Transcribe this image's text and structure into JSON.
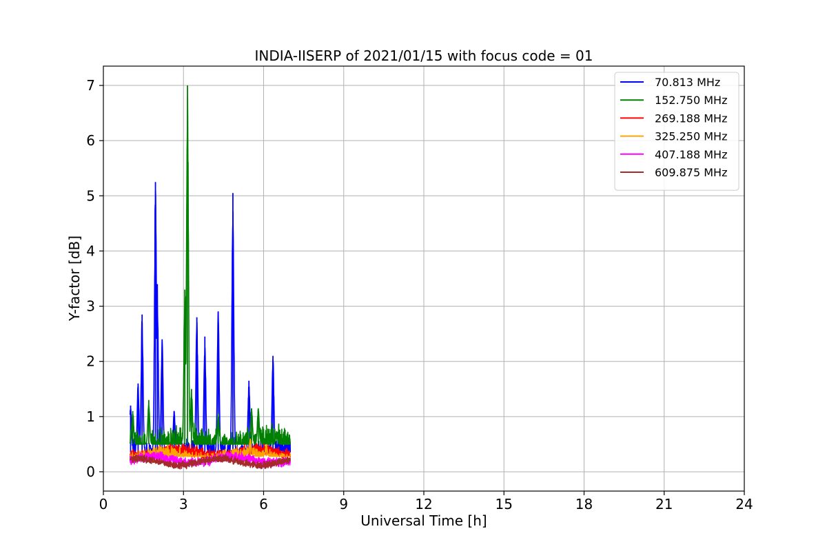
{
  "chart_data": {
    "type": "line",
    "title": "INDIA-IISERP of 2021/01/15 with focus code = 01",
    "xlabel": "Universal Time [h]",
    "ylabel": "Y-factor [dB]",
    "xlim": [
      0,
      24
    ],
    "ylim": [
      -0.35,
      7.35
    ],
    "xticks": [
      0,
      3,
      6,
      9,
      12,
      15,
      18,
      21,
      24
    ],
    "yticks": [
      0,
      1,
      2,
      3,
      4,
      5,
      6,
      7
    ],
    "grid": true,
    "legend_position": "top-right",
    "series": [
      {
        "name": "  70.813 MHz",
        "color": "#0000ff",
        "baseline": 0.35,
        "noise": 0.25,
        "x_range": [
          1.0,
          7.0
        ],
        "peaks": [
          {
            "x": 1.02,
            "y": 1.2
          },
          {
            "x": 1.3,
            "y": 1.6
          },
          {
            "x": 1.45,
            "y": 2.85
          },
          {
            "x": 1.95,
            "y": 5.25
          },
          {
            "x": 2.02,
            "y": 3.4
          },
          {
            "x": 2.2,
            "y": 2.4
          },
          {
            "x": 2.65,
            "y": 1.1
          },
          {
            "x": 3.5,
            "y": 2.8
          },
          {
            "x": 3.8,
            "y": 2.45
          },
          {
            "x": 4.3,
            "y": 2.9
          },
          {
            "x": 4.85,
            "y": 5.05
          },
          {
            "x": 5.45,
            "y": 1.65
          },
          {
            "x": 6.35,
            "y": 2.1
          }
        ]
      },
      {
        "name": "152.750 MHz",
        "color": "#008000",
        "baseline": 0.5,
        "noise": 0.35,
        "x_range": [
          1.0,
          7.0
        ],
        "peaks": [
          {
            "x": 1.1,
            "y": 1.1
          },
          {
            "x": 1.7,
            "y": 1.3
          },
          {
            "x": 3.05,
            "y": 3.3
          },
          {
            "x": 3.15,
            "y": 7.0
          },
          {
            "x": 3.3,
            "y": 1.5
          },
          {
            "x": 4.3,
            "y": 1.05
          },
          {
            "x": 5.55,
            "y": 1.15
          },
          {
            "x": 5.8,
            "y": 1.15
          },
          {
            "x": 6.5,
            "y": 0.7
          }
        ]
      },
      {
        "name": "269.188 MHz",
        "color": "#ff0000",
        "baseline": 0.35,
        "noise": 0.12,
        "x_range": [
          1.0,
          7.0
        ],
        "peaks": []
      },
      {
        "name": "325.250 MHz",
        "color": "#ffa500",
        "baseline": 0.28,
        "noise": 0.15,
        "x_range": [
          1.0,
          7.0
        ],
        "peaks": [
          {
            "x": 5.5,
            "y": 0.6
          },
          {
            "x": 6.1,
            "y": 0.5
          }
        ]
      },
      {
        "name": "407.188 MHz",
        "color": "#ff00ff",
        "baseline": 0.22,
        "noise": 0.1,
        "x_range": [
          1.0,
          7.0
        ],
        "peaks": []
      },
      {
        "name": "609.875 MHz",
        "color": "#a52a2a",
        "baseline": 0.18,
        "noise": 0.08,
        "x_range": [
          1.0,
          7.0
        ],
        "peaks": []
      }
    ]
  }
}
